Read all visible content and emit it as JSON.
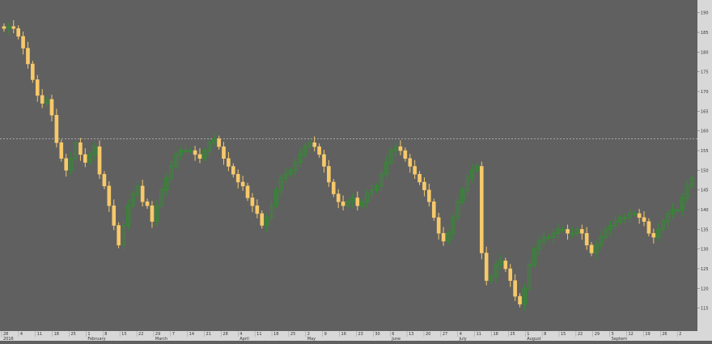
{
  "colors": {
    "background": "#606060",
    "up_candle_outline": "#2f8f2f",
    "down_candle_fill": "#f7c96b",
    "axis_panel": "#d8d8d8",
    "axis_text": "#333333",
    "reference_line": "#b0b0b0"
  },
  "chart_data": {
    "type": "candlestick",
    "title": "",
    "xlabel": "",
    "ylabel": "",
    "ylim": [
      110,
      192
    ],
    "grid": false,
    "reference_line": 158,
    "y_ticks": [
      115,
      120,
      125,
      130,
      135,
      140,
      145,
      150,
      155,
      160,
      165,
      170,
      175,
      180,
      185,
      190
    ],
    "x_tick_labels": [
      "28",
      "4",
      "11",
      "18",
      "25",
      "1",
      "8",
      "15",
      "22",
      "29",
      "7",
      "14",
      "21",
      "28",
      "4",
      "11",
      "18",
      "25",
      "2",
      "9",
      "16",
      "23",
      "30",
      "6",
      "13",
      "20",
      "27",
      "4",
      "11",
      "18",
      "25",
      "1",
      "8",
      "15",
      "22",
      "29",
      "5",
      "12",
      "19",
      "26",
      "2"
    ],
    "month_labels": [
      {
        "label": "2016",
        "tick_index": 0
      },
      {
        "label": "February",
        "tick_index": 5
      },
      {
        "label": "March",
        "tick_index": 9
      },
      {
        "label": "April",
        "tick_index": 14
      },
      {
        "label": "May",
        "tick_index": 18
      },
      {
        "label": "June",
        "tick_index": 23
      },
      {
        "label": "July",
        "tick_index": 27
      },
      {
        "label": "August",
        "tick_index": 31
      },
      {
        "label": "Septem",
        "tick_index": 36
      }
    ],
    "closes": [
      186,
      186.5,
      186,
      184,
      181,
      177,
      173,
      169,
      167,
      168,
      164,
      157,
      153,
      150,
      153,
      157,
      154,
      152,
      154,
      156,
      149,
      146,
      141,
      136,
      131,
      136,
      141,
      144,
      146,
      142,
      141,
      137,
      141,
      145,
      148,
      151,
      154,
      155,
      155,
      155,
      154,
      153,
      155,
      157,
      158,
      156,
      153,
      151,
      149,
      147,
      146,
      143,
      141,
      139,
      136,
      138,
      141,
      145,
      148,
      149,
      150,
      152,
      154,
      156,
      157,
      156,
      154,
      151,
      147,
      144,
      142,
      141,
      142,
      143,
      141,
      142,
      144,
      145,
      146,
      149,
      152,
      155,
      156,
      155,
      153,
      151,
      149,
      147,
      145,
      142,
      138,
      134,
      132,
      134,
      138,
      142,
      145,
      148,
      150,
      151,
      129,
      122,
      123,
      126,
      127,
      125,
      122,
      118,
      116,
      120,
      126,
      130,
      132,
      133,
      133,
      134,
      135,
      135,
      134,
      134,
      135,
      134,
      131,
      129,
      131,
      133,
      135,
      136,
      137,
      138,
      138,
      139,
      139,
      138,
      137,
      134,
      133,
      135,
      137,
      139,
      140,
      140,
      143,
      146,
      148
    ]
  }
}
